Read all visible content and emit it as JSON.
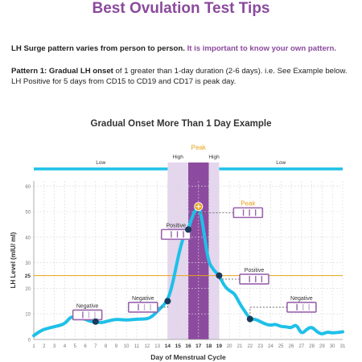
{
  "page": {
    "title": "Best Ovulation Test Tips",
    "intro1_plain": "LH Surge pattern varies from person to person. ",
    "intro1_highlight": "It is important to know your own pattern.",
    "intro2_bold": "Pattern 1: Gradual LH onset",
    "intro2_rest": " of 1 greater than 1-day duration (2-6 days). i.e. See Example below.",
    "intro3": "LH Positive for 5 days from CD15 to CD19 and CD17 is peak day."
  },
  "colors": {
    "curve": "#1ec0e8",
    "threshold": "#e6a21a",
    "peak_band": "#8d4ba0",
    "high_band": "#e4d6ec",
    "marker": "#1a3a5c",
    "test_strip": "#9a62ad",
    "peak_label": "#e6a21a",
    "label_purple": "#8a4a9c"
  },
  "chart_data": {
    "type": "line",
    "title": "Gradual Onset More Than 1 Day Example",
    "xlabel": "Day of Menstrual Cycle",
    "ylabel": "LH Level (mIU/ ml)",
    "xlim": [
      1,
      31
    ],
    "ylim": [
      0,
      62
    ],
    "x_ticks": [
      1,
      2,
      3,
      4,
      5,
      6,
      7,
      8,
      9,
      10,
      11,
      12,
      13,
      14,
      15,
      16,
      17,
      18,
      19,
      20,
      21,
      22,
      23,
      24,
      25,
      26,
      27,
      28,
      29,
      30,
      31
    ],
    "bold_x_ticks": [
      14,
      15,
      16,
      17,
      18,
      19
    ],
    "y_ticks": [
      0,
      10,
      20,
      30,
      40,
      50,
      60
    ],
    "grid": true,
    "threshold": {
      "value": 25,
      "label": "25"
    },
    "series": [
      {
        "x": [
          1,
          1.5,
          2,
          3,
          4,
          4.6,
          5,
          6,
          6.5,
          7,
          7.5,
          8,
          9,
          10,
          11,
          12,
          12.5,
          13,
          14,
          14.5,
          15,
          15.5,
          16,
          16.3,
          16.6,
          17,
          17.3,
          17.7,
          18,
          18.5,
          19,
          19.5,
          20,
          20.5,
          21,
          21.5,
          22,
          22.5,
          23,
          23.5,
          24,
          24.5,
          25,
          25.5,
          26,
          26.5,
          27,
          27.5,
          28,
          28.5,
          29,
          29.5,
          30,
          31
        ],
        "y": [
          1.5,
          3,
          4,
          5,
          6,
          9,
          8.5,
          8,
          7,
          7,
          6.5,
          7,
          8,
          7.5,
          8,
          8,
          9,
          11,
          15,
          22,
          32,
          40,
          43,
          47,
          50,
          52,
          48,
          37,
          30,
          27,
          25,
          21,
          19,
          18,
          14,
          11,
          8,
          8,
          7,
          6,
          5.5,
          6,
          5,
          5,
          4.5,
          6,
          2,
          4,
          5,
          3,
          2,
          3,
          2.5,
          3
        ]
      }
    ],
    "markers": [
      {
        "x": 7,
        "y": 7
      },
      {
        "x": 14,
        "y": 15
      },
      {
        "x": 16,
        "y": 43
      },
      {
        "x": 19,
        "y": 25
      },
      {
        "x": 22,
        "y": 8
      }
    ],
    "peak_marker": {
      "x": 17,
      "y": 52
    },
    "phases": [
      {
        "label": "Low",
        "x_start": 1,
        "x_end": 14
      },
      {
        "label": "High",
        "x_start": 14,
        "x_end": 16
      },
      {
        "label": "Peak",
        "x_start": 16,
        "x_end": 18
      },
      {
        "label": "High",
        "x_start": 18,
        "x_end": 19
      },
      {
        "label": "Low",
        "x_start": 19,
        "x_end": 31
      }
    ],
    "annotations": [
      {
        "label": "Negative",
        "x": 4.8,
        "y": 11.5,
        "target_x": 7,
        "target_y": 7,
        "strip": "negative"
      },
      {
        "label": "Negative",
        "x": 10.2,
        "y": 14.5,
        "target_x": 14,
        "target_y": 15,
        "strip": "negative"
      },
      {
        "label": "Positive",
        "x": 13.4,
        "y": 43,
        "target_x": 16,
        "target_y": 43,
        "strip": "positive"
      },
      {
        "label": "Peak",
        "x": 20.4,
        "y": 51.5,
        "target_x": 17,
        "target_y": 52,
        "strip": "peak"
      },
      {
        "label": "Positive",
        "x": 21,
        "y": 25.5,
        "target_x": 19,
        "target_y": 25,
        "strip": "positive"
      },
      {
        "label": "Negative",
        "x": 25.6,
        "y": 14.5,
        "target_x": 22,
        "target_y": 8,
        "strip": "negative"
      }
    ]
  }
}
